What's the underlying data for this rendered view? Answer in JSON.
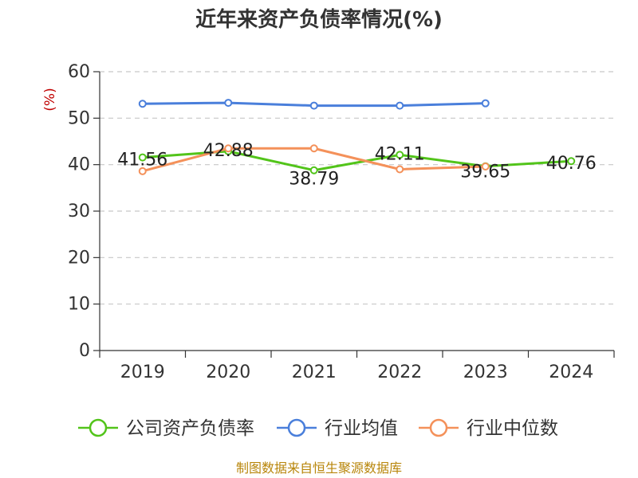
{
  "chart_data": {
    "type": "line",
    "title": "近年来资产负债率情况(%)",
    "unit_label": "(%)",
    "categories": [
      "2019",
      "2020",
      "2021",
      "2022",
      "2023",
      "2024"
    ],
    "ylim": [
      0,
      60
    ],
    "yticks": [
      "0",
      "10",
      "20",
      "30",
      "40",
      "50",
      "60"
    ],
    "grid": true,
    "legend_position": "bottom",
    "series": [
      {
        "name": "公司资产负债率",
        "color": "#52c41a",
        "values": [
          41.56,
          42.88,
          38.79,
          42.11,
          39.65,
          40.76
        ],
        "labels": [
          "41.56",
          "42.88",
          "38.79",
          "42.11",
          "39.65",
          "40.76"
        ]
      },
      {
        "name": "行业均值",
        "color": "#4a7fdb",
        "values": [
          53.1,
          53.3,
          52.7,
          52.7,
          53.2,
          null
        ]
      },
      {
        "name": "行业中位数",
        "color": "#f4915a",
        "values": [
          38.6,
          43.5,
          43.5,
          39.0,
          39.6,
          null
        ]
      }
    ],
    "source": "制图数据来自恒生聚源数据库"
  }
}
